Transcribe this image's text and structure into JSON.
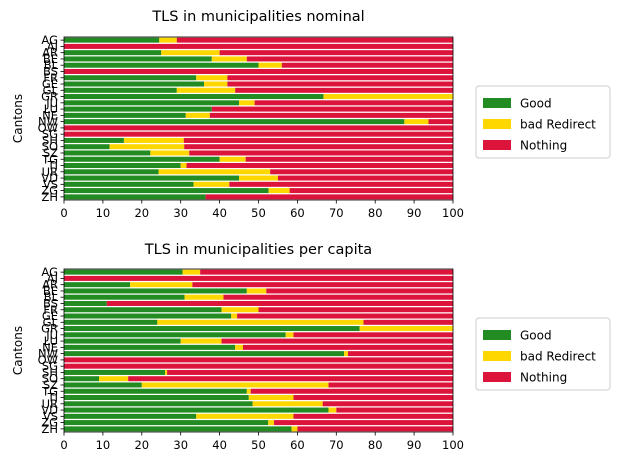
{
  "colors": {
    "good": "#228B22",
    "bad_redirect": "#FFD700",
    "nothing": "#DC143C"
  },
  "chart_data": [
    {
      "type": "bar",
      "orientation": "horizontal",
      "stacked": true,
      "title": "TLS in municipalities nominal",
      "xlabel": "",
      "ylabel": "Cantons",
      "xlim": [
        0,
        100
      ],
      "xticks": [
        0,
        10,
        20,
        30,
        40,
        50,
        60,
        70,
        80,
        90,
        100
      ],
      "categories": [
        "AG",
        "AI",
        "AR",
        "BE",
        "BL",
        "BS",
        "FR",
        "GE",
        "GL",
        "GR",
        "JU",
        "LU",
        "NE",
        "NW",
        "OW",
        "SG",
        "SH",
        "SO",
        "SZ",
        "TG",
        "TI",
        "UR",
        "VD",
        "VS",
        "ZG",
        "ZH"
      ],
      "series": [
        {
          "name": "Good",
          "color": "#228B22",
          "values": [
            24.5,
            0,
            25,
            38,
            50,
            0,
            34,
            36,
            29,
            66.7,
            45,
            38,
            31.3,
            87.5,
            0,
            0,
            15.4,
            11.7,
            22.2,
            40,
            30,
            24.3,
            45,
            33.3,
            52.6,
            36.4
          ]
        },
        {
          "name": "bad Redirect",
          "color": "#FFD700",
          "values": [
            4.5,
            0,
            15,
            9,
            6,
            0,
            8,
            6,
            15,
            33.3,
            4,
            0,
            6.2,
            6.2,
            0,
            0,
            15.4,
            19.2,
            10,
            6.7,
            1.5,
            28.7,
            10,
            9.2,
            5.4,
            0
          ]
        },
        {
          "name": "Nothing",
          "color": "#DC143C",
          "values": [
            71,
            100,
            60,
            53,
            44,
            100,
            58,
            58,
            56,
            0,
            51,
            62,
            62.5,
            6.3,
            100,
            100,
            69.2,
            69.1,
            67.8,
            53.3,
            68.5,
            47,
            45,
            57.5,
            42,
            63.6
          ]
        }
      ],
      "legend": {
        "placement": "right",
        "entries": [
          "Good",
          "bad Redirect",
          "Nothing"
        ]
      }
    },
    {
      "type": "bar",
      "orientation": "horizontal",
      "stacked": true,
      "title": "TLS in municipalities per capita",
      "xlabel": "",
      "ylabel": "Cantons",
      "xlim": [
        0,
        100
      ],
      "xticks": [
        0,
        10,
        20,
        30,
        40,
        50,
        60,
        70,
        80,
        90,
        100
      ],
      "categories": [
        "AG",
        "AI",
        "AR",
        "BE",
        "BL",
        "BS",
        "FR",
        "GE",
        "GL",
        "GR",
        "JU",
        "LU",
        "NE",
        "NW",
        "OW",
        "SG",
        "SH",
        "SO",
        "SZ",
        "TG",
        "TI",
        "UR",
        "VD",
        "VS",
        "ZG",
        "ZH"
      ],
      "series": [
        {
          "name": "Good",
          "color": "#228B22",
          "values": [
            30.5,
            0,
            17,
            47,
            31,
            11,
            40.5,
            43,
            24,
            76,
            57,
            30,
            44,
            72,
            0,
            0,
            26,
            9,
            20,
            47,
            47.5,
            48.5,
            68,
            34,
            52.5,
            58.5
          ]
        },
        {
          "name": "bad Redirect",
          "color": "#FFD700",
          "values": [
            4.5,
            0,
            16,
            5,
            10,
            0,
            9.5,
            1.5,
            53,
            24,
            2,
            10.5,
            2,
            1,
            0,
            0,
            0.5,
            7.5,
            48,
            1,
            11.5,
            18,
            2,
            25,
            1.5,
            1.5
          ]
        },
        {
          "name": "Nothing",
          "color": "#DC143C",
          "values": [
            65,
            100,
            67,
            48,
            59,
            89,
            50,
            55.5,
            23,
            0,
            41,
            59.5,
            54,
            27,
            100,
            100,
            73.5,
            83.5,
            32,
            52,
            41,
            33.5,
            30,
            41,
            46,
            40
          ]
        }
      ],
      "legend": {
        "placement": "right",
        "entries": [
          "Good",
          "bad Redirect",
          "Nothing"
        ]
      }
    }
  ]
}
